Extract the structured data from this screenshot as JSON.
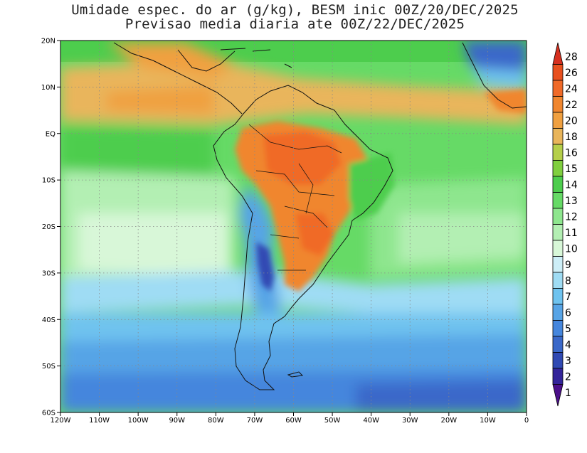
{
  "title": {
    "line1": "Umidade espec. do ar (g/kg), BESM inic 00Z/20/DEC/2025",
    "line2": "Previsao media diaria ate 00Z/22/DEC/2025"
  },
  "map": {
    "lat_range": [
      -60,
      20
    ],
    "lon_range": [
      -120,
      0
    ],
    "lat_labels": [
      "20N",
      "10N",
      "EQ",
      "10S",
      "20S",
      "30S",
      "40S",
      "50S",
      "60S"
    ],
    "lon_labels": [
      "120W",
      "110W",
      "100W",
      "90W",
      "80W",
      "70W",
      "60W",
      "50W",
      "40W",
      "30W",
      "20W",
      "10W",
      "0"
    ],
    "grid": "dotted"
  },
  "colorbar": {
    "levels": [
      "28",
      "26",
      "24",
      "22",
      "20",
      "18",
      "16",
      "15",
      "14",
      "13",
      "12",
      "11",
      "10",
      "9",
      "8",
      "7",
      "6",
      "5",
      "4",
      "3",
      "2",
      "1"
    ],
    "colors": [
      "#d62f1f",
      "#e8501e",
      "#f06a28",
      "#f0862f",
      "#f0a040",
      "#e9b55b",
      "#b5cf4a",
      "#80cf3f",
      "#4dcd4d",
      "#66da66",
      "#8ee68e",
      "#b3efb3",
      "#d8f7d8",
      "#cdeef7",
      "#9fdcf4",
      "#6fc3ef",
      "#57a4e6",
      "#4586dd",
      "#3a68c9",
      "#3049b3",
      "#33249a",
      "#4b0f8a"
    ]
  }
}
